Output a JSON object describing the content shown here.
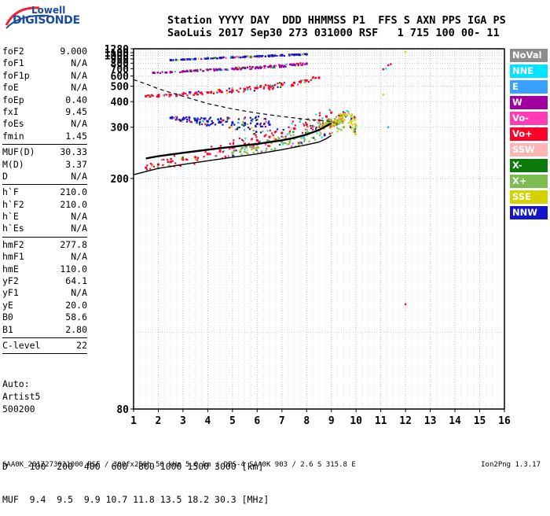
{
  "logo": {
    "word1": "Lowell",
    "word2": "DIGISONDE"
  },
  "header": {
    "line1": "Station YYYY DAY  DDD HHMMSS P1  FFS S AXN PPS IGA PS",
    "line2": "SaoLuis 2017 Sep30 273 031000 RSF   1 715 100 00- 11"
  },
  "params": [
    {
      "label": "foF2",
      "value": "9.000"
    },
    {
      "label": "foF1",
      "value": "N/A"
    },
    {
      "label": "foF1p",
      "value": "N/A"
    },
    {
      "label": "foE",
      "value": "N/A"
    },
    {
      "label": "foEp",
      "value": "0.40"
    },
    {
      "label": "fxI",
      "value": "9.45"
    },
    {
      "label": "foEs",
      "value": "N/A"
    },
    {
      "label": "fmin",
      "value": "1.45"
    },
    {
      "sep": true
    },
    {
      "label": "MUF(D)",
      "value": "30.33"
    },
    {
      "label": "M(D)",
      "value": "3.37"
    },
    {
      "label": "D",
      "value": "N/A"
    },
    {
      "sep": true
    },
    {
      "label": "h`F",
      "value": "210.0"
    },
    {
      "label": "h`F2",
      "value": "210.0"
    },
    {
      "label": "h`E",
      "value": "N/A"
    },
    {
      "label": "h`Es",
      "value": "N/A"
    },
    {
      "sep": true
    },
    {
      "label": "hmF2",
      "value": "277.8"
    },
    {
      "label": "hmF1",
      "value": "N/A"
    },
    {
      "label": "hmE",
      "value": "110.0"
    },
    {
      "label": "yF2",
      "value": "64.1"
    },
    {
      "label": "yF1",
      "value": "N/A"
    },
    {
      "label": "yE",
      "value": "20.0"
    },
    {
      "label": "B0",
      "value": "58.6"
    },
    {
      "label": "B1",
      "value": "2.80"
    },
    {
      "sep": true
    },
    {
      "label": "C-level",
      "value": "22"
    },
    {
      "sep": true
    }
  ],
  "auto": {
    "line1": "Auto:",
    "line2": "Artist5",
    "line3": "500200"
  },
  "legend": [
    {
      "label": "NoVal",
      "color": "#8c8c8c"
    },
    {
      "label": "NNE",
      "color": "#00e5ff"
    },
    {
      "label": "E",
      "color": "#3aa0ff"
    },
    {
      "label": "W",
      "color": "#a000a0"
    },
    {
      "label": "Vo-",
      "color": "#ff3cb4"
    },
    {
      "label": "Vo+",
      "color": "#ff0028"
    },
    {
      "label": "SSW",
      "color": "#ffb4b4"
    },
    {
      "label": "X-",
      "color": "#0a7a0a"
    },
    {
      "label": "X+",
      "color": "#7cbc50"
    },
    {
      "label": "SSE",
      "color": "#d2d200"
    },
    {
      "label": "NNW",
      "color": "#1414c8"
    }
  ],
  "muf_table": {
    "line1": "D    100  200  400  600  800 1000 1500 3000 [km]",
    "line2": "MUF  9.4  9.5  9.9 10.7 11.8 13.5 18.2 30.3 [MHz]"
  },
  "footer": "SAA0K_2017273031000.RSF / 300fx256h 50 kHz 5.0 km / DPS-4 SAA0K 903 / 2.6 S 315.8 E",
  "version": "Ion2Png 1.3.17",
  "chart_data": {
    "type": "scatter",
    "xlim": [
      1,
      16
    ],
    "ylim": [
      80,
      1280
    ],
    "x_ticks": [
      1,
      2,
      3,
      4,
      5,
      6,
      7,
      8,
      9,
      10,
      11,
      12,
      13,
      14,
      15,
      16
    ],
    "y_ticks": [
      80,
      200,
      300,
      400,
      500,
      600,
      700,
      800,
      900,
      1000,
      1100,
      1280
    ],
    "y_scale": "reciprocal",
    "grid": true,
    "series": [
      {
        "name": "Vo+",
        "color": "#ff0028",
        "x": [
          1.5,
          2.0,
          2.5,
          3.0,
          3.5,
          4.0,
          4.5,
          5.0,
          5.5,
          6.0,
          6.5,
          7.0,
          7.5,
          8.0,
          8.5,
          8.8,
          9.0
        ],
        "y": [
          215,
          220,
          224,
          228,
          232,
          238,
          244,
          250,
          258,
          266,
          274,
          284,
          296,
          308,
          322,
          335,
          350
        ]
      },
      {
        "name": "Vo+",
        "color": "#ff0028",
        "x": [
          1.5,
          2.0,
          2.5,
          3.0,
          3.5,
          4.0,
          4.5,
          5.0,
          5.5,
          6.0,
          6.5,
          7.0,
          7.5,
          8.0,
          8.5
        ],
        "y": [
          430,
          434,
          438,
          443,
          448,
          454,
          461,
          468,
          476,
          486,
          498,
          512,
          530,
          552,
          580
        ]
      },
      {
        "name": "W",
        "color": "#a000a0",
        "x": [
          1.8,
          2.5,
          3.0,
          3.5,
          4.0,
          4.5,
          5.0,
          5.5,
          6.0,
          6.5,
          7.0,
          7.5,
          8.0
        ],
        "y": [
          640,
          650,
          660,
          670,
          680,
          690,
          700,
          710,
          722,
          735,
          750,
          768,
          790
        ]
      },
      {
        "name": "NNW",
        "color": "#1414c8",
        "x": [
          2.5,
          3.0,
          3.5,
          4.0,
          4.5,
          5.0,
          5.5,
          6.0,
          6.5,
          7.0,
          7.5,
          8.0
        ],
        "y": [
          870,
          885,
          900,
          915,
          930,
          945,
          960,
          975,
          990,
          1005,
          1020,
          1040
        ]
      },
      {
        "name": "X+",
        "color": "#7cbc50",
        "x": [
          5.0,
          6.0,
          7.0,
          7.5,
          8.0,
          8.5,
          9.0,
          9.3,
          9.5
        ],
        "y": [
          240,
          250,
          262,
          270,
          280,
          292,
          305,
          315,
          300
        ]
      },
      {
        "name": "SSE",
        "color": "#d2d200",
        "x": [
          8.6,
          8.8,
          9.0,
          9.2,
          9.4,
          9.6,
          9.8,
          10.0
        ],
        "y": [
          300,
          305,
          310,
          320,
          330,
          340,
          320,
          305
        ]
      },
      {
        "name": "NNW",
        "color": "#1414c8",
        "x": [
          2.5,
          3.0,
          3.5,
          4.0,
          4.5,
          5.0,
          5.5,
          6.0,
          6.5
        ],
        "y": [
          330,
          325,
          322,
          318,
          315,
          313,
          312,
          310,
          308
        ]
      }
    ],
    "profile": {
      "x": [
        1.0,
        2.0,
        3.0,
        4.0,
        5.0,
        6.0,
        7.0,
        8.0,
        8.5,
        8.8,
        9.0
      ],
      "y": [
        205,
        214,
        220,
        226,
        232,
        238,
        246,
        256,
        262,
        270,
        278
      ]
    },
    "dashed_curve": {
      "x": [
        1.0,
        1.5,
        2.0,
        3.0,
        4.0,
        5.0,
        6.0,
        7.0,
        8.0,
        8.5,
        9.0
      ],
      "y": [
        560,
        520,
        480,
        430,
        390,
        365,
        348,
        335,
        325,
        322,
        318
      ]
    },
    "trace": {
      "x": [
        1.5,
        2.0,
        3.0,
        4.0,
        5.0,
        6.0,
        7.0,
        7.5,
        8.0,
        8.5,
        9.0
      ],
      "y": [
        230,
        234,
        240,
        246,
        252,
        258,
        266,
        272,
        280,
        292,
        312
      ]
    }
  }
}
